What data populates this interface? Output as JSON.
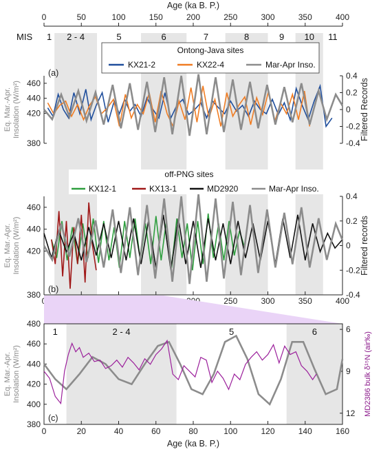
{
  "chart_data": {
    "top_axis": {
      "label": "Age (ka B. P.)",
      "range": [
        0,
        400
      ],
      "ticks": [
        "0",
        "50",
        "100",
        "150",
        "200",
        "250",
        "300",
        "350",
        "400"
      ]
    },
    "mis": {
      "label": "MIS",
      "stages": [
        {
          "label": "1",
          "start": 0,
          "end": 14,
          "shaded": false
        },
        {
          "label": "2 - 4",
          "start": 14,
          "end": 71,
          "shaded": true
        },
        {
          "label": "5",
          "start": 71,
          "end": 130,
          "shaded": false
        },
        {
          "label": "6",
          "start": 130,
          "end": 191,
          "shaded": true
        },
        {
          "label": "7",
          "start": 191,
          "end": 243,
          "shaded": false
        },
        {
          "label": "8",
          "start": 243,
          "end": 300,
          "shaded": true
        },
        {
          "label": "9",
          "start": 300,
          "end": 337,
          "shaded": false
        },
        {
          "label": "10",
          "start": 337,
          "end": 374,
          "shaded": true
        },
        {
          "label": "11",
          "start": 374,
          "end": 400,
          "shaded": false
        }
      ]
    },
    "panels": [
      {
        "id": "a",
        "tag": "(a)",
        "title": "Ontong-Java sites",
        "ylabel_left": "Eq. Mar.-Apr. Insolation (W/m²)",
        "ylabel_left_lines": [
          "Eq. Mar.-Apr.",
          "Insolation (W/m²)"
        ],
        "ylabel_right": "Filtered Records",
        "ylim_left": [
          380,
          470
        ],
        "ylim_right": [
          -0.4,
          0.4
        ],
        "yticks_left": [
          "380",
          "420",
          "440",
          "460"
        ],
        "yticks_right": [
          "-0.4",
          "-0.2",
          "0",
          "0.2",
          "0.4"
        ],
        "series": [
          {
            "name": "KX21-2",
            "color": "#1f4e9c",
            "x": [
              5,
              12,
              19,
              26,
              33,
              40,
              48,
              56,
              63,
              70,
              78,
              86,
              94,
              101,
              108,
              115,
              122,
              130,
              138,
              146,
              154,
              162,
              170,
              178,
              186,
              194,
              202,
              210,
              218,
              226,
              234,
              242,
              250,
              258,
              266,
              274,
              282,
              290,
              298,
              306,
              314,
              322,
              330,
              338,
              346,
              354,
              362,
              370,
              378,
              386
            ],
            "y": [
              0.02,
              -0.08,
              0.18,
              0.0,
              -0.1,
              0.2,
              -0.05,
              0.24,
              -0.12,
              0.05,
              0.2,
              -0.15,
              0.1,
              -0.05,
              0.12,
              -0.02,
              0.06,
              -0.08,
              0.14,
              0.0,
              -0.1,
              0.2,
              -0.1,
              0.05,
              0.12,
              -0.06,
              0.0,
              0.08,
              -0.1,
              0.1,
              0.02,
              -0.05,
              0.1,
              -0.02,
              0.05,
              -0.08,
              0.1,
              0.0,
              -0.05,
              0.12,
              -0.06,
              0.08,
              -0.12,
              0.25,
              0.05,
              -0.12,
              0.1,
              0.28,
              -0.2,
              -0.1
            ]
          },
          {
            "name": "KX22-4",
            "color": "#f07c22",
            "x": [
              5,
              13,
              21,
              29,
              37,
              45,
              53,
              61,
              69,
              77,
              85,
              93,
              101,
              109,
              117,
              125,
              133,
              141,
              149,
              157,
              165,
              173,
              181,
              189,
              197,
              205,
              213,
              221,
              229,
              237,
              245,
              253,
              261,
              269,
              277,
              285,
              293,
              301,
              309,
              317,
              325,
              333,
              341,
              349,
              356
            ],
            "y": [
              0.08,
              -0.05,
              0.05,
              0.1,
              -0.08,
              0.06,
              -0.12,
              0.05,
              0.15,
              -0.05,
              0.02,
              0.12,
              -0.2,
              0.18,
              -0.1,
              0.06,
              -0.05,
              0.2,
              -0.15,
              0.22,
              -0.05,
              -0.2,
              0.1,
              -0.12,
              0.26,
              -0.15,
              0.28,
              -0.1,
              0.12,
              -0.2,
              0.2,
              -0.08,
              0.05,
              0.15,
              -0.18,
              0.14,
              -0.06,
              0.22,
              -0.15,
              0.08,
              -0.05,
              0.18,
              -0.12,
              0.22,
              -0.2
            ]
          },
          {
            "name": "Mar-Apr Inso.",
            "color": "#8c8c8c",
            "x": [
              0,
              11,
              23,
              34,
              46,
              57,
              69,
              80,
              92,
              103,
              115,
              126,
              138,
              149,
              161,
              172,
              184,
              195,
              207,
              218,
              230,
              241,
              253,
              264,
              276,
              287,
              299,
              310,
              322,
              333,
              345,
              356,
              368,
              379,
              391,
              400
            ],
            "y": [
              425,
              412,
              445,
              415,
              450,
              410,
              448,
              405,
              458,
              400,
              460,
              398,
              462,
              395,
              468,
              392,
              470,
              390,
              472,
              392,
              468,
              395,
              465,
              398,
              462,
              400,
              458,
              405,
              455,
              408,
              460,
              405,
              450,
              412,
              445,
              430
            ]
          }
        ]
      },
      {
        "id": "b",
        "tag": "(b)",
        "title": "off-PNG sites",
        "ylabel_left": "Eq. Mar.-Apr. Insolation (W/m²)",
        "ylabel_left_lines": [
          "Eq. Mar.-Apr.",
          "Insolation (W/m²)"
        ],
        "ylabel_right": "Filtered records",
        "ylim_left": [
          380,
          470
        ],
        "ylim_right": [
          -0.4,
          0.4
        ],
        "yticks_left": [
          "380",
          "420",
          "440",
          "460"
        ],
        "yticks_right": [
          "-0.4",
          "-0.2",
          "0",
          "0.2",
          "0.4"
        ],
        "series": [
          {
            "name": "KX12-1",
            "color": "#2e9e3e",
            "x": [
              10,
              17,
              24,
              31,
              38,
              45,
              52,
              59,
              66,
              73,
              80,
              87,
              94,
              101,
              108,
              115,
              122,
              129,
              136,
              143,
              150,
              157,
              164,
              171,
              178,
              185,
              192,
              199,
              206,
              213,
              220,
              227,
              234,
              241,
              248,
              255,
              262,
              268
            ],
            "y": [
              0.05,
              -0.1,
              0.2,
              -0.12,
              0.15,
              -0.15,
              0.18,
              -0.1,
              0.22,
              -0.14,
              0.2,
              -0.12,
              0.15,
              -0.18,
              0.2,
              -0.1,
              0.22,
              -0.12,
              0.18,
              -0.15,
              0.24,
              -0.12,
              0.2,
              -0.18,
              0.22,
              -0.1,
              0.18,
              -0.2,
              0.2,
              -0.15,
              0.26,
              -0.1,
              0.18,
              -0.12,
              0.2,
              -0.08,
              0.12,
              0.0
            ]
          },
          {
            "name": "KX13-1",
            "color": "#a01818",
            "x": [
              10,
              15,
              20,
              25,
              30,
              35,
              40,
              45,
              50,
              55,
              60,
              65,
              70
            ],
            "y": [
              0.05,
              -0.15,
              0.28,
              -0.25,
              0.2,
              -0.35,
              0.15,
              -0.15,
              0.25,
              -0.3,
              0.35,
              0.0,
              -0.2
            ]
          },
          {
            "name": "MD2920",
            "color": "#111111",
            "x": [
              0,
              10,
              20,
              30,
              40,
              50,
              60,
              70,
              80,
              90,
              100,
              110,
              120,
              130,
              140,
              150,
              160,
              170,
              180,
              190,
              200,
              210,
              220,
              230,
              240,
              250,
              260,
              270,
              280,
              290,
              300,
              310,
              320,
              330,
              340,
              350,
              360,
              370,
              380,
              390,
              400
            ],
            "y": [
              0.1,
              -0.1,
              0.12,
              -0.05,
              0.1,
              -0.12,
              0.15,
              -0.08,
              0.18,
              -0.1,
              0.2,
              -0.12,
              0.22,
              -0.15,
              0.2,
              -0.18,
              0.25,
              -0.2,
              0.22,
              -0.15,
              0.2,
              -0.18,
              0.22,
              -0.12,
              0.18,
              -0.15,
              0.2,
              -0.1,
              0.18,
              -0.12,
              0.2,
              -0.15,
              0.22,
              -0.1,
              0.25,
              -0.12,
              0.18,
              -0.05,
              0.1,
              -0.02,
              0.05
            ]
          },
          {
            "name": "Mar-Apr Inso.",
            "color": "#8c8c8c",
            "x": [
              0,
              11,
              23,
              34,
              46,
              57,
              69,
              80,
              92,
              103,
              115,
              126,
              138,
              149,
              161,
              172,
              184,
              195,
              207,
              218,
              230,
              241,
              253,
              264,
              276,
              287,
              299,
              310,
              322,
              333,
              345,
              356,
              368,
              379,
              391,
              400
            ],
            "y": [
              425,
              412,
              445,
              415,
              450,
              410,
              448,
              405,
              458,
              400,
              460,
              398,
              462,
              395,
              468,
              392,
              470,
              390,
              472,
              392,
              468,
              395,
              465,
              398,
              462,
              400,
              458,
              405,
              455,
              408,
              460,
              405,
              450,
              412,
              445,
              430
            ]
          }
        ],
        "xticks": [
          "0",
          "50",
          "100",
          "150",
          "200",
          "250",
          "300",
          "350",
          "400"
        ]
      },
      {
        "id": "c",
        "tag": "(c)",
        "ylabel_left": "Eq. Mar.-Apr. Insolation (W/m²)",
        "ylabel_left_lines": [
          "Eq. Mar.-Apr.",
          "Insolation (W/m²)"
        ],
        "ylabel_right": "MD2386 bulk δ¹⁵N (air‰)",
        "xlabel": "Age (ka B. P.)",
        "xlim": [
          0,
          160
        ],
        "ylim_left": [
          380,
          480
        ],
        "ylim_right": [
          12.8,
          5.6
        ],
        "yticks_left": [
          "380",
          "400",
          "420",
          "440",
          "460",
          "480"
        ],
        "yticks_right": [
          "6",
          "9",
          "12"
        ],
        "xticks": [
          "0",
          "20",
          "40",
          "60",
          "80",
          "100",
          "120",
          "140",
          "160"
        ],
        "mis": [
          {
            "label": "1",
            "start": 0,
            "end": 12,
            "shaded": false
          },
          {
            "label": "2 - 4",
            "start": 12,
            "end": 71,
            "shaded": true
          },
          {
            "label": "5",
            "start": 71,
            "end": 130,
            "shaded": false
          },
          {
            "label": "6",
            "start": 130,
            "end": 160,
            "shaded": true
          }
        ],
        "series": [
          {
            "name": "Mar-Apr Inso.",
            "color": "#8c8c8c",
            "x": [
              0,
              6,
              12,
              19,
              26,
              33,
              40,
              47,
              54,
              61,
              67,
              73,
              79,
              85,
              91,
              97,
              103,
              109,
              115,
              121,
              127,
              133,
              139,
              145,
              151,
              157,
              160
            ],
            "y": [
              440,
              425,
              415,
              430,
              447,
              440,
              425,
              420,
              440,
              458,
              462,
              440,
              415,
              410,
              430,
              462,
              468,
              445,
              410,
              400,
              425,
              462,
              462,
              435,
              410,
              415,
              445
            ]
          },
          {
            "name": "MD2386 bulk δ¹⁵N",
            "color": "#9b1f9b",
            "x": [
              0,
              3,
              6,
              9,
              11,
              13,
              15,
              17,
              19,
              21,
              24,
              27,
              30,
              33,
              36,
              39,
              42,
              45,
              48,
              51,
              54,
              57,
              60,
              63,
              66,
              69,
              72,
              75,
              78,
              81,
              84,
              87,
              90,
              93,
              96,
              99,
              102,
              105,
              108,
              111,
              114,
              117,
              120,
              123,
              126,
              129,
              132,
              135,
              138,
              141,
              144,
              146
            ],
            "y": [
              9.0,
              9.5,
              10.8,
              11.3,
              9.0,
              7.8,
              7.0,
              7.6,
              7.3,
              8.0,
              7.7,
              8.3,
              8.2,
              8.8,
              8.6,
              8.2,
              8.7,
              8.0,
              8.4,
              8.9,
              8.1,
              8.5,
              7.8,
              7.4,
              6.8,
              9.2,
              9.6,
              8.6,
              9.0,
              9.4,
              8.0,
              8.2,
              9.8,
              9.0,
              9.5,
              10.3,
              9.2,
              9.6,
              8.5,
              8.0,
              7.6,
              8.2,
              7.8,
              7.1,
              8.4,
              7.2,
              7.8,
              7.6,
              8.6,
              9.0,
              9.6,
              9.2
            ]
          }
        ]
      }
    ]
  }
}
